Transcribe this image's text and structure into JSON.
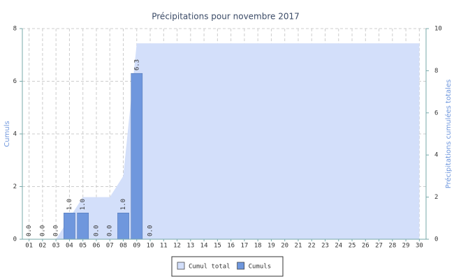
{
  "chart_data": {
    "type": "combo",
    "title": "Précipitations pour novembre 2017",
    "y_label": "Cumuls",
    "y2_label": "Précipitations cumulées totales",
    "categories": [
      "01",
      "02",
      "03",
      "04",
      "05",
      "06",
      "07",
      "08",
      "09",
      "10",
      "11",
      "12",
      "13",
      "14",
      "15",
      "16",
      "17",
      "18",
      "19",
      "20",
      "21",
      "22",
      "23",
      "24",
      "25",
      "26",
      "27",
      "28",
      "29",
      "30"
    ],
    "series": [
      {
        "name": "Cumul total",
        "type": "area",
        "axis": "y2",
        "color": "#d3dffa",
        "values": [
          0,
          0,
          0,
          1,
          2,
          2,
          2,
          3,
          9.3,
          9.3,
          9.3,
          9.3,
          9.3,
          9.3,
          9.3,
          9.3,
          9.3,
          9.3,
          9.3,
          9.3,
          9.3,
          9.3,
          9.3,
          9.3,
          9.3,
          9.3,
          9.3,
          9.3,
          9.3,
          9.3
        ]
      },
      {
        "name": "Cumuls",
        "type": "bar",
        "color": "#6f97dd",
        "values": [
          0,
          0,
          0,
          1,
          1,
          0,
          0,
          1,
          6.3,
          0,
          null,
          null,
          null,
          null,
          null,
          null,
          null,
          null,
          null,
          null,
          null,
          null,
          null,
          null,
          null,
          null,
          null,
          null,
          null,
          null
        ],
        "value_labels": [
          "0.0",
          "0.0",
          "0.0",
          "1.0",
          "1.0",
          "0.0",
          "0.0",
          "1.0",
          "6.3",
          "0.0",
          null,
          null,
          null,
          null,
          null,
          null,
          null,
          null,
          null,
          null,
          null,
          null,
          null,
          null,
          null,
          null,
          null,
          null,
          null,
          null
        ]
      }
    ],
    "ylim": [
      0,
      8
    ],
    "yticks": [
      0,
      2,
      4,
      6,
      8
    ],
    "y2lim": [
      0,
      10
    ],
    "y2ticks": [
      0,
      2,
      4,
      6,
      8,
      10
    ],
    "grid": true
  }
}
